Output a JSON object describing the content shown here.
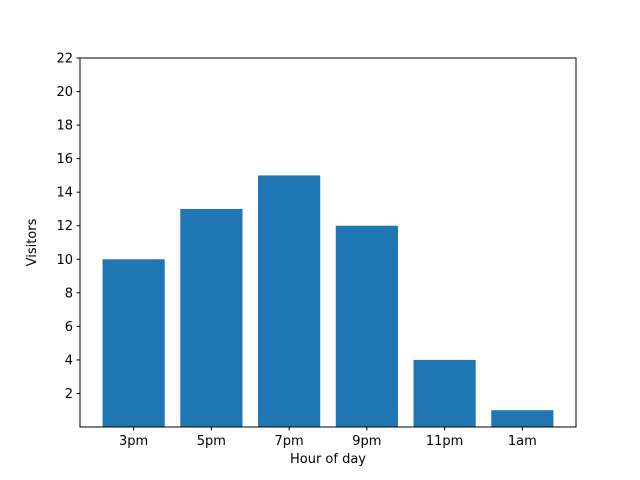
{
  "figure": {
    "background": "#ffffff"
  },
  "chart_data": {
    "type": "bar",
    "categories": [
      "3pm",
      "5pm",
      "7pm",
      "9pm",
      "11pm",
      "1am"
    ],
    "values": [
      10,
      13,
      15,
      12,
      4,
      1
    ],
    "title": "",
    "xlabel": "Hour of day",
    "ylabel": "Visitors",
    "ylim": [
      0,
      22
    ],
    "yticks": [
      2,
      4,
      6,
      8,
      10,
      12,
      14,
      16,
      18,
      20,
      22
    ],
    "bar_color": "#1f77b4",
    "axis_color": "#000000",
    "grid": false,
    "legend_position": "none"
  }
}
